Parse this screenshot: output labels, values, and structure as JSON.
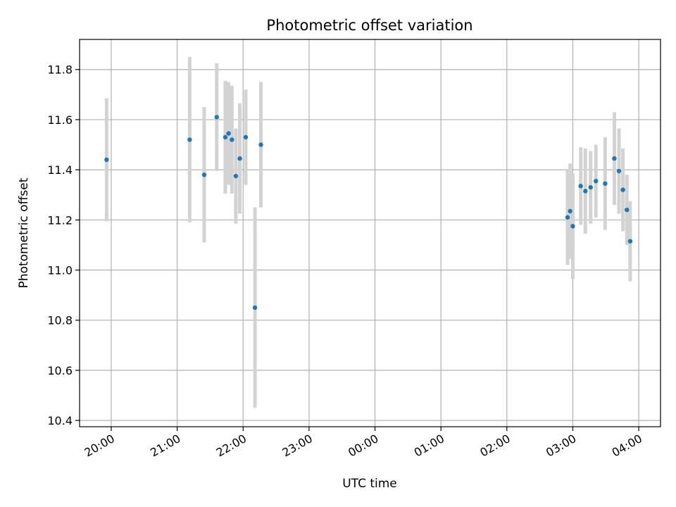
{
  "chart_data": {
    "type": "scatter",
    "title": "Photometric offset variation",
    "xlabel": "UTC time",
    "ylabel": "Photometric offset",
    "x_unit": "hours since 00:00 UTC (first night date)",
    "xlim": [
      19.52,
      28.33
    ],
    "ylim": [
      10.375,
      11.92
    ],
    "grid": true,
    "x_ticks": [
      {
        "value": 20,
        "label": "20:00"
      },
      {
        "value": 21,
        "label": "21:00"
      },
      {
        "value": 22,
        "label": "22:00"
      },
      {
        "value": 23,
        "label": "23:00"
      },
      {
        "value": 24,
        "label": "00:00"
      },
      {
        "value": 25,
        "label": "01:00"
      },
      {
        "value": 26,
        "label": "02:00"
      },
      {
        "value": 27,
        "label": "03:00"
      },
      {
        "value": 28,
        "label": "04:00"
      }
    ],
    "y_ticks": [
      {
        "value": 10.4,
        "label": "10.4"
      },
      {
        "value": 10.6,
        "label": "10.6"
      },
      {
        "value": 10.8,
        "label": "10.8"
      },
      {
        "value": 11.0,
        "label": "11.0"
      },
      {
        "value": 11.2,
        "label": "11.2"
      },
      {
        "value": 11.4,
        "label": "11.4"
      },
      {
        "value": 11.6,
        "label": "11.6"
      },
      {
        "value": 11.8,
        "label": "11.8"
      }
    ],
    "colors": {
      "point": "#1f77b4",
      "errorbar": "#d3d3d3",
      "grid": "#b0b0b0"
    },
    "series": [
      {
        "points": [
          {
            "x": 19.93,
            "y": 11.44,
            "err": 0.245
          },
          {
            "x": 21.19,
            "y": 11.52,
            "err": 0.33
          },
          {
            "x": 21.41,
            "y": 11.38,
            "err": 0.27
          },
          {
            "x": 21.6,
            "y": 11.61,
            "err": 0.215
          },
          {
            "x": 21.73,
            "y": 11.53,
            "err": 0.225
          },
          {
            "x": 21.78,
            "y": 11.545,
            "err": 0.205
          },
          {
            "x": 21.83,
            "y": 11.52,
            "err": 0.215
          },
          {
            "x": 21.89,
            "y": 11.375,
            "err": 0.19
          },
          {
            "x": 21.95,
            "y": 11.445,
            "err": 0.22
          },
          {
            "x": 22.04,
            "y": 11.53,
            "err": 0.19
          },
          {
            "x": 22.18,
            "y": 10.85,
            "err": 0.4
          },
          {
            "x": 22.27,
            "y": 11.5,
            "err": 0.25
          },
          {
            "x": 26.92,
            "y": 11.21,
            "err": 0.19
          },
          {
            "x": 26.96,
            "y": 11.235,
            "err": 0.19
          },
          {
            "x": 27.0,
            "y": 11.175,
            "err": 0.21
          },
          {
            "x": 27.12,
            "y": 11.335,
            "err": 0.155
          },
          {
            "x": 27.19,
            "y": 11.315,
            "err": 0.17
          },
          {
            "x": 27.27,
            "y": 11.33,
            "err": 0.145
          },
          {
            "x": 27.35,
            "y": 11.355,
            "err": 0.145
          },
          {
            "x": 27.49,
            "y": 11.345,
            "err": 0.185
          },
          {
            "x": 27.63,
            "y": 11.445,
            "err": 0.185
          },
          {
            "x": 27.7,
            "y": 11.395,
            "err": 0.17
          },
          {
            "x": 27.76,
            "y": 11.32,
            "err": 0.165
          },
          {
            "x": 27.82,
            "y": 11.24,
            "err": 0.14
          },
          {
            "x": 27.87,
            "y": 11.115,
            "err": 0.16
          }
        ]
      }
    ]
  }
}
